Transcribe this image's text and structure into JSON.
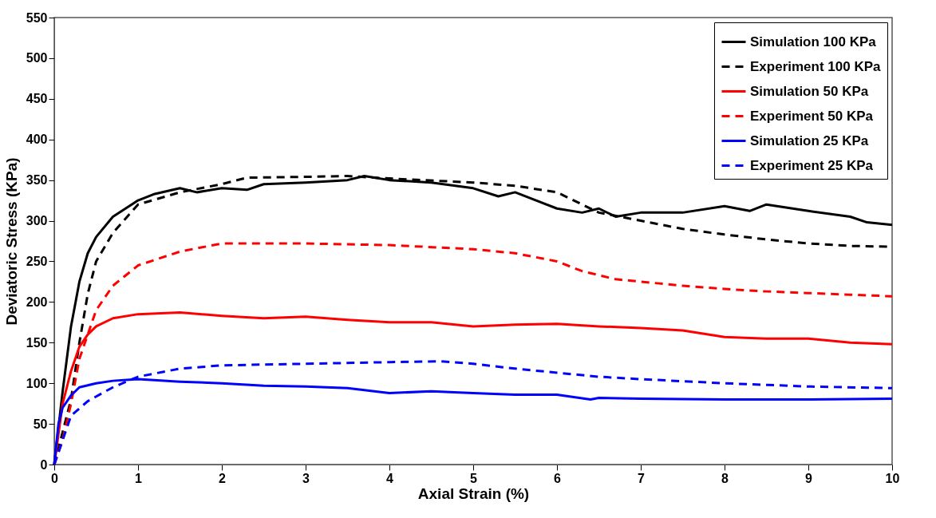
{
  "chart_data": {
    "type": "line",
    "xlabel": "Axial Strain (%)",
    "ylabel": "Deviatoric Stress (KPa)",
    "xlim": [
      0,
      10
    ],
    "ylim": [
      0,
      550
    ],
    "xticks": [
      0,
      1,
      2,
      3,
      4,
      5,
      6,
      7,
      8,
      9,
      10
    ],
    "yticks": [
      0,
      50,
      100,
      150,
      200,
      250,
      300,
      350,
      400,
      450,
      500,
      550
    ],
    "grid": false,
    "legend": "top right",
    "marker": "none",
    "series": [
      {
        "name": "Simulation 100 KPa",
        "color": "#000000",
        "line_style": "solid",
        "x": [
          0,
          0.1,
          0.2,
          0.3,
          0.4,
          0.5,
          0.7,
          1.0,
          1.2,
          1.5,
          1.7,
          2.0,
          2.3,
          2.5,
          3.0,
          3.5,
          3.7,
          4.0,
          4.5,
          5.0,
          5.3,
          5.5,
          6.0,
          6.3,
          6.5,
          6.7,
          7.0,
          7.5,
          8.0,
          8.3,
          8.5,
          9.0,
          9.5,
          9.7,
          10
        ],
        "values": [
          0,
          90,
          170,
          225,
          260,
          280,
          305,
          325,
          333,
          340,
          335,
          340,
          338,
          345,
          347,
          350,
          355,
          350,
          347,
          340,
          330,
          335,
          315,
          310,
          315,
          305,
          310,
          310,
          318,
          312,
          320,
          312,
          305,
          298,
          295
        ]
      },
      {
        "name": "Experiment 100 KPa",
        "color": "#000000",
        "line_style": "dashed",
        "x": [
          0,
          0.2,
          0.3,
          0.4,
          0.5,
          0.7,
          1.0,
          1.5,
          2.0,
          2.3,
          3.0,
          3.5,
          4.0,
          5.0,
          5.5,
          6.0,
          6.3,
          6.5,
          7.0,
          7.5,
          8.0,
          8.5,
          9.0,
          9.5,
          10
        ],
        "values": [
          0,
          80,
          150,
          210,
          250,
          285,
          320,
          335,
          345,
          353,
          354,
          355,
          352,
          347,
          343,
          335,
          320,
          310,
          300,
          290,
          283,
          277,
          272,
          269,
          268
        ]
      },
      {
        "name": "Simulation 50 KPa",
        "color": "#ff0000",
        "line_style": "solid",
        "x": [
          0,
          0.1,
          0.2,
          0.3,
          0.4,
          0.5,
          0.7,
          1.0,
          1.5,
          2.0,
          2.5,
          3.0,
          3.5,
          4.0,
          4.5,
          5.0,
          5.5,
          6.0,
          6.5,
          7.0,
          7.5,
          8.0,
          8.5,
          9.0,
          9.5,
          10
        ],
        "values": [
          0,
          75,
          115,
          145,
          160,
          170,
          180,
          185,
          187,
          183,
          180,
          182,
          178,
          175,
          175,
          170,
          172,
          173,
          170,
          168,
          165,
          157,
          155,
          155,
          150,
          148
        ]
      },
      {
        "name": "Experiment 50 KPa",
        "color": "#ff0000",
        "line_style": "dashed",
        "x": [
          0,
          0.1,
          0.2,
          0.3,
          0.5,
          0.7,
          1.0,
          1.5,
          2.0,
          3.0,
          4.0,
          5.0,
          5.5,
          6.0,
          6.3,
          6.7,
          7.0,
          7.5,
          8.0,
          8.5,
          9.0,
          9.5,
          10
        ],
        "values": [
          0,
          30,
          75,
          130,
          190,
          220,
          245,
          262,
          272,
          272,
          270,
          265,
          260,
          250,
          238,
          228,
          225,
          220,
          216,
          213,
          211,
          209,
          207
        ]
      },
      {
        "name": "Simulation 25 KPa",
        "color": "#0000ff",
        "line_style": "solid",
        "x": [
          0,
          0.05,
          0.1,
          0.2,
          0.3,
          0.5,
          0.7,
          1.0,
          1.5,
          2.0,
          2.5,
          3.0,
          3.5,
          4.0,
          4.5,
          5.0,
          5.5,
          6.0,
          6.4,
          6.5,
          7.0,
          8.0,
          9.0,
          10
        ],
        "values": [
          0,
          50,
          70,
          85,
          95,
          100,
          103,
          105,
          102,
          100,
          97,
          96,
          94,
          88,
          90,
          88,
          86,
          86,
          80,
          82,
          81,
          80,
          80,
          81
        ]
      },
      {
        "name": "Experiment 25 KPa",
        "color": "#0000ff",
        "line_style": "dashed",
        "x": [
          0,
          0.1,
          0.2,
          0.4,
          0.7,
          1.0,
          1.5,
          2.0,
          3.0,
          4.0,
          4.6,
          5.0,
          5.5,
          6.0,
          6.5,
          7.0,
          8.0,
          9.0,
          10
        ],
        "values": [
          0,
          30,
          60,
          78,
          95,
          108,
          118,
          122,
          124,
          126,
          127,
          124,
          118,
          113,
          108,
          105,
          100,
          96,
          94
        ]
      }
    ]
  }
}
